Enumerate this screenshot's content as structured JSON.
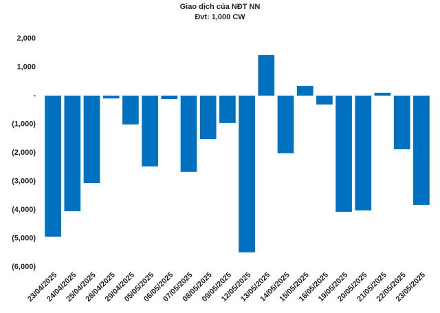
{
  "chart_data": {
    "type": "bar",
    "title": "Giao dịch của NĐT NN",
    "subtitle": "Đvt: 1,000 CW",
    "categories": [
      "23/04/2025",
      "24/04/2025",
      "25/04/2025",
      "28/04/2025",
      "29/04/2025",
      "05/05/2025",
      "06/05/2025",
      "07/05/2025",
      "08/05/2025",
      "09/05/2025",
      "12/05/2025",
      "13/05/2025",
      "14/05/2025",
      "15/05/2025",
      "16/05/2025",
      "19/05/2025",
      "20/05/2025",
      "21/05/2025",
      "22/05/2025",
      "23/05/2025"
    ],
    "values": [
      -4940,
      -4050,
      -3060,
      -100,
      -1010,
      -2480,
      -120,
      -2670,
      -1520,
      -960,
      -5490,
      1420,
      -2020,
      340,
      -310,
      -4070,
      -4020,
      100,
      -1880,
      -3830
    ],
    "color": "#0070c0",
    "ylim": [
      -6000,
      2000
    ],
    "yticks": [
      {
        "value": 2000,
        "label": "2,000"
      },
      {
        "value": 1000,
        "label": "1,000"
      },
      {
        "value": 0,
        "label": "-"
      },
      {
        "value": -1000,
        "label": "(1,000)"
      },
      {
        "value": -2000,
        "label": "(2,000)"
      },
      {
        "value": -3000,
        "label": "(3,000)"
      },
      {
        "value": -4000,
        "label": "(4,000)"
      },
      {
        "value": -5000,
        "label": "(5,000)"
      },
      {
        "value": -6000,
        "label": "(6,000)"
      }
    ],
    "grid": false
  }
}
